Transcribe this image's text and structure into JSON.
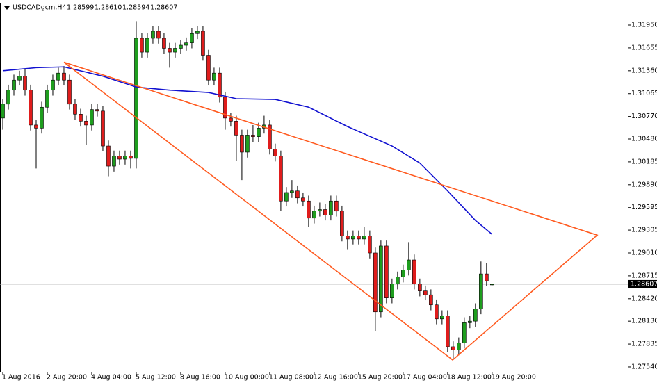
{
  "chart_data": {
    "type": "candlestick",
    "symbol": "USDCADgcm,H4",
    "last_quote": {
      "values": [
        1.28599,
        1.2861,
        1.28594,
        1.28607
      ],
      "value_labels": [
        "1.28599",
        "1.28610",
        "1.28594",
        "1.28607"
      ]
    },
    "categories": [
      "1 Aug 2016",
      null,
      null,
      null,
      null,
      null,
      null,
      null,
      "2 Aug 20:00",
      null,
      null,
      null,
      null,
      null,
      null,
      null,
      "4 Aug 04:00",
      null,
      null,
      null,
      null,
      null,
      null,
      null,
      "5 Aug 12:00",
      null,
      null,
      null,
      null,
      null,
      null,
      null,
      "8 Aug 16:00",
      null,
      null,
      null,
      null,
      null,
      null,
      null,
      "10 Aug 00:00",
      null,
      null,
      null,
      null,
      null,
      null,
      null,
      "11 Aug 08:00",
      null,
      null,
      null,
      null,
      null,
      null,
      null,
      "12 Aug 16:00",
      null,
      null,
      null,
      null,
      null,
      null,
      null,
      "15 Aug 20:00",
      null,
      null,
      null,
      null,
      null,
      null,
      null,
      "17 Aug 04:00",
      null,
      null,
      null,
      null,
      null,
      null,
      null,
      "18 Aug 12:00",
      null,
      null,
      null,
      null,
      null,
      null,
      null,
      "19 Aug 20:00"
    ],
    "open": [
      1.3075,
      1.3093,
      1.3111,
      1.3124,
      1.3129,
      1.3111,
      1.3066,
      1.3062,
      1.3089,
      1.3111,
      1.3124,
      1.3133,
      1.3124,
      1.3093,
      1.308,
      1.3071,
      1.3066,
      1.3086,
      1.3084,
      1.3039,
      1.3013,
      1.3026,
      1.3022,
      1.3026,
      1.3023,
      1.3178,
      1.316,
      1.3178,
      1.3187,
      1.3178,
      1.3165,
      1.316,
      1.3165,
      1.3169,
      1.3172,
      1.3184,
      1.3187,
      1.3156,
      1.3124,
      1.3133,
      1.3102,
      1.3075,
      1.3071,
      1.3053,
      1.3031,
      1.3053,
      1.3051,
      1.3062,
      1.3066,
      1.3035,
      1.3026,
      1.2968,
      1.2979,
      1.2981,
      1.2972,
      1.2968,
      1.2946,
      1.2955,
      1.2957,
      1.295,
      1.2968,
      1.2955,
      1.2923,
      1.2919,
      1.2923,
      1.2919,
      1.2923,
      1.2901,
      1.2825,
      1.291,
      1.2843,
      1.2861,
      1.287,
      1.2879,
      1.2892,
      1.2861,
      1.2852,
      1.2847,
      1.2834,
      1.2816,
      1.282,
      1.278,
      1.2776,
      1.2785,
      1.2811,
      1.2813,
      1.2829,
      1.2874,
      1.28599
    ],
    "high": [
      1.31,
      1.3118,
      1.3131,
      1.3136,
      1.3138,
      1.3118,
      1.3073,
      1.3096,
      1.3118,
      1.3131,
      1.314,
      1.3142,
      1.3131,
      1.31,
      1.3087,
      1.3078,
      1.3093,
      1.3093,
      1.3091,
      1.3046,
      1.3033,
      1.3033,
      1.3033,
      1.3033,
      1.32,
      1.3185,
      1.3185,
      1.3194,
      1.3194,
      1.3185,
      1.3172,
      1.3172,
      1.3176,
      1.3179,
      1.3191,
      1.3194,
      1.3194,
      1.3163,
      1.314,
      1.314,
      1.3109,
      1.3082,
      1.3078,
      1.306,
      1.306,
      1.3066,
      1.3069,
      1.3078,
      1.3073,
      1.3042,
      1.3033,
      1.2986,
      1.2995,
      1.2988,
      1.2979,
      1.2975,
      1.2962,
      1.2966,
      1.2964,
      1.2975,
      1.2975,
      1.2962,
      1.293,
      1.293,
      1.293,
      1.2935,
      1.293,
      1.2908,
      1.2917,
      1.2917,
      1.2868,
      1.2877,
      1.2886,
      1.2915,
      1.2899,
      1.2868,
      1.2859,
      1.2854,
      1.2841,
      1.2827,
      1.2827,
      1.2787,
      1.2792,
      1.2818,
      1.282,
      1.2836,
      1.289,
      1.2888,
      1.2861
    ],
    "low": [
      1.306,
      1.3086,
      1.3104,
      1.3117,
      1.3104,
      1.3059,
      1.301,
      1.3055,
      1.3082,
      1.3104,
      1.3117,
      1.3117,
      1.3086,
      1.3073,
      1.3064,
      1.304,
      1.3059,
      1.3077,
      1.3032,
      1.3,
      1.3006,
      1.3015,
      1.3015,
      1.301,
      1.301,
      1.3153,
      1.3153,
      1.3171,
      1.3171,
      1.3158,
      1.314,
      1.3153,
      1.3158,
      1.3162,
      1.3165,
      1.3177,
      1.3149,
      1.3117,
      1.3117,
      1.3095,
      1.306,
      1.3064,
      1.302,
      1.2995,
      1.3024,
      1.3044,
      1.3044,
      1.3055,
      1.3028,
      1.3019,
      1.2955,
      1.2961,
      1.2972,
      1.2965,
      1.2961,
      1.2935,
      1.2939,
      1.2948,
      1.2943,
      1.2943,
      1.2948,
      1.2916,
      1.2905,
      1.2912,
      1.2912,
      1.2912,
      1.2894,
      1.28,
      1.2818,
      1.2836,
      1.2836,
      1.2854,
      1.2863,
      1.2872,
      1.2854,
      1.2845,
      1.284,
      1.2827,
      1.2809,
      1.2809,
      1.2773,
      1.2765,
      1.2769,
      1.2778,
      1.2804,
      1.2806,
      1.2822,
      1.2858,
      1.28594
    ],
    "close": [
      1.3093,
      1.3111,
      1.3124,
      1.3129,
      1.3111,
      1.3066,
      1.3062,
      1.3089,
      1.3111,
      1.3124,
      1.3133,
      1.3124,
      1.3093,
      1.308,
      1.3071,
      1.3066,
      1.3086,
      1.3084,
      1.3039,
      1.3013,
      1.3026,
      1.3022,
      1.3026,
      1.3023,
      1.3178,
      1.316,
      1.3178,
      1.3187,
      1.3178,
      1.3165,
      1.316,
      1.3165,
      1.3169,
      1.3172,
      1.3184,
      1.3187,
      1.3156,
      1.3124,
      1.3133,
      1.3102,
      1.3075,
      1.3071,
      1.3053,
      1.3031,
      1.3053,
      1.3051,
      1.3062,
      1.3066,
      1.3035,
      1.3026,
      1.2968,
      1.2979,
      1.2981,
      1.2972,
      1.2968,
      1.2946,
      1.2955,
      1.2957,
      1.295,
      1.2968,
      1.2955,
      1.2923,
      1.2919,
      1.2923,
      1.2919,
      1.2923,
      1.2901,
      1.2825,
      1.291,
      1.2843,
      1.2861,
      1.287,
      1.2879,
      1.2892,
      1.2861,
      1.2852,
      1.2847,
      1.2834,
      1.2816,
      1.282,
      1.278,
      1.2776,
      1.2785,
      1.2811,
      1.2813,
      1.2829,
      1.2874,
      1.2865,
      1.28607
    ],
    "up_color": "#1e9e1e",
    "down_color": "#e01c1c",
    "moving_average": {
      "color": "#1010d0",
      "x": [
        0,
        6,
        11,
        18,
        24,
        30,
        37,
        42,
        49,
        55,
        62,
        70,
        75,
        80,
        85,
        88
      ],
      "values": [
        1.3136,
        1.314,
        1.3141,
        1.3129,
        1.3115,
        1.3111,
        1.3108,
        1.31,
        1.3099,
        1.3089,
        1.3064,
        1.3039,
        1.3017,
        1.2981,
        1.2943,
        1.2925
      ]
    },
    "triangle": {
      "color": "#ff5a1f",
      "x": [
        11,
        80.9,
        106.9,
        11
      ],
      "values": [
        1.3147,
        1.2763,
        1.2924,
        1.3147
      ]
    },
    "xlim": [
      -0.5,
      112.4
    ],
    "ylim": [
      1.27477,
      1.32228
    ],
    "yticks": [
      {
        "value": 1.3195,
        "label": "1.31950"
      },
      1.31655,
      {
        "value": 1.3136,
        "label": "1.31360"
      },
      1.31065,
      {
        "value": 1.3077,
        "label": "1.30770"
      },
      {
        "value": 1.3048,
        "label": "1.30480"
      },
      1.30185,
      {
        "value": 1.2989,
        "label": "1.29890"
      },
      1.29595,
      1.29305,
      {
        "value": 1.2901,
        "label": "1.29010"
      },
      1.28715,
      {
        "value": 1.2842,
        "label": "1.28420"
      },
      {
        "value": 1.2813,
        "label": "1.28130"
      },
      1.27835,
      {
        "value": 1.2754,
        "label": "1.27540"
      }
    ]
  }
}
